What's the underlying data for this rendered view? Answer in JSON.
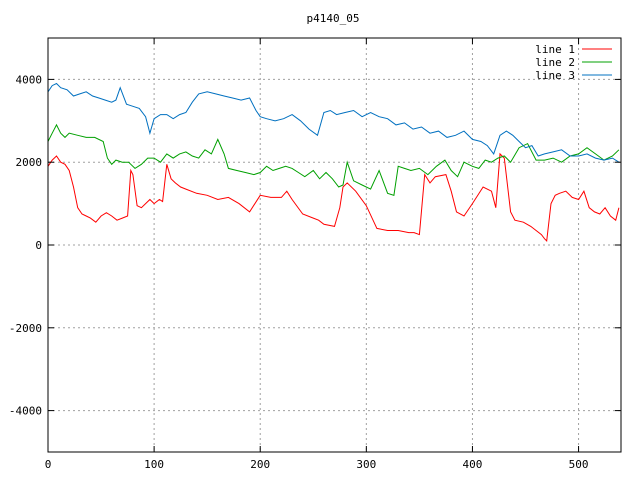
{
  "chart_data": {
    "type": "line",
    "title": "p4140_05",
    "xlabel": "",
    "ylabel": "",
    "xlim": [
      0,
      540
    ],
    "ylim": [
      -5000,
      5000
    ],
    "xticks": [
      0,
      100,
      200,
      300,
      400,
      500
    ],
    "yticks": [
      -4000,
      -2000,
      0,
      2000,
      4000
    ],
    "grid": true,
    "legend_position": "top-right",
    "series": [
      {
        "name": "line 1",
        "color": "#ff0000",
        "x": [
          0,
          4,
          8,
          12,
          16,
          20,
          24,
          28,
          32,
          36,
          40,
          45,
          50,
          55,
          60,
          65,
          70,
          75,
          78,
          80,
          84,
          88,
          92,
          96,
          100,
          105,
          108,
          112,
          116,
          120,
          125,
          130,
          140,
          150,
          160,
          170,
          180,
          190,
          200,
          210,
          220,
          225,
          230,
          240,
          250,
          255,
          260,
          270,
          275,
          278,
          282,
          290,
          300,
          310,
          320,
          330,
          340,
          345,
          350,
          355,
          360,
          365,
          375,
          380,
          385,
          392,
          400,
          410,
          418,
          422,
          426,
          430,
          436,
          440,
          448,
          455,
          460,
          465,
          468,
          470,
          474,
          478,
          482,
          488,
          494,
          500,
          505,
          510,
          515,
          520,
          525,
          530,
          535,
          538
        ],
        "y": [
          1900,
          2050,
          2150,
          2000,
          1950,
          1800,
          1400,
          900,
          750,
          700,
          650,
          550,
          700,
          780,
          700,
          600,
          650,
          700,
          1800,
          1700,
          950,
          900,
          1000,
          1100,
          1000,
          1100,
          1050,
          1950,
          1600,
          1500,
          1400,
          1350,
          1250,
          1200,
          1100,
          1150,
          1000,
          800,
          1200,
          1150,
          1150,
          1300,
          1100,
          750,
          650,
          600,
          500,
          450,
          900,
          1400,
          1500,
          1300,
          950,
          400,
          350,
          350,
          300,
          300,
          250,
          1700,
          1500,
          1650,
          1700,
          1300,
          800,
          700,
          1000,
          1400,
          1300,
          900,
          2200,
          2100,
          800,
          600,
          550,
          450,
          350,
          250,
          150,
          100,
          1000,
          1200,
          1250,
          1300,
          1150,
          1100,
          1300,
          900,
          800,
          750,
          900,
          700,
          600,
          900
        ]
      },
      {
        "name": "line 2",
        "color": "#00a000",
        "x": [
          0,
          4,
          8,
          12,
          16,
          20,
          28,
          36,
          44,
          52,
          56,
          60,
          64,
          70,
          76,
          82,
          88,
          94,
          100,
          106,
          112,
          118,
          124,
          130,
          136,
          142,
          148,
          154,
          160,
          166,
          170,
          178,
          186,
          194,
          200,
          206,
          212,
          218,
          224,
          230,
          236,
          242,
          250,
          256,
          262,
          268,
          274,
          278,
          282,
          288,
          296,
          304,
          312,
          320,
          326,
          330,
          336,
          342,
          350,
          358,
          366,
          374,
          380,
          386,
          392,
          400,
          406,
          412,
          418,
          424,
          430,
          436,
          444,
          452,
          460,
          468,
          476,
          484,
          492,
          500,
          508,
          516,
          524,
          532,
          538
        ],
        "y": [
          2500,
          2700,
          2900,
          2700,
          2600,
          2700,
          2650,
          2600,
          2600,
          2500,
          2100,
          1950,
          2050,
          2000,
          2000,
          1850,
          1950,
          2100,
          2100,
          2000,
          2200,
          2100,
          2200,
          2250,
          2150,
          2100,
          2300,
          2200,
          2550,
          2200,
          1850,
          1800,
          1750,
          1700,
          1750,
          1900,
          1800,
          1850,
          1900,
          1850,
          1750,
          1650,
          1800,
          1600,
          1750,
          1600,
          1400,
          1450,
          2000,
          1550,
          1450,
          1350,
          1800,
          1250,
          1200,
          1900,
          1850,
          1800,
          1850,
          1700,
          1900,
          2050,
          1800,
          1650,
          2000,
          1900,
          1850,
          2050,
          2000,
          2100,
          2150,
          2000,
          2350,
          2450,
          2050,
          2050,
          2100,
          2000,
          2150,
          2200,
          2350,
          2200,
          2050,
          2150,
          2300
        ]
      },
      {
        "name": "line 3",
        "color": "#0070c0",
        "x": [
          0,
          4,
          8,
          12,
          18,
          24,
          30,
          36,
          42,
          48,
          54,
          60,
          64,
          68,
          74,
          80,
          86,
          92,
          96,
          100,
          106,
          112,
          118,
          124,
          130,
          136,
          142,
          150,
          158,
          166,
          174,
          182,
          190,
          196,
          200,
          206,
          214,
          222,
          230,
          238,
          246,
          254,
          260,
          266,
          272,
          280,
          288,
          296,
          304,
          312,
          320,
          328,
          336,
          344,
          352,
          360,
          368,
          376,
          384,
          392,
          400,
          408,
          414,
          420,
          426,
          432,
          438,
          444,
          450,
          456,
          462,
          468,
          476,
          484,
          492,
          500,
          508,
          516,
          524,
          532,
          538
        ],
        "y": [
          3700,
          3850,
          3900,
          3800,
          3750,
          3600,
          3650,
          3700,
          3600,
          3550,
          3500,
          3450,
          3500,
          3800,
          3400,
          3350,
          3300,
          3100,
          2700,
          3050,
          3150,
          3150,
          3050,
          3150,
          3200,
          3450,
          3650,
          3700,
          3650,
          3600,
          3550,
          3500,
          3550,
          3250,
          3100,
          3050,
          3000,
          3050,
          3150,
          3000,
          2800,
          2650,
          3200,
          3250,
          3150,
          3200,
          3250,
          3100,
          3200,
          3100,
          3050,
          2900,
          2950,
          2800,
          2850,
          2700,
          2750,
          2600,
          2650,
          2750,
          2550,
          2500,
          2400,
          2200,
          2650,
          2750,
          2650,
          2500,
          2350,
          2400,
          2150,
          2200,
          2250,
          2300,
          2150,
          2150,
          2200,
          2100,
          2050,
          2100,
          2000
        ]
      }
    ]
  }
}
